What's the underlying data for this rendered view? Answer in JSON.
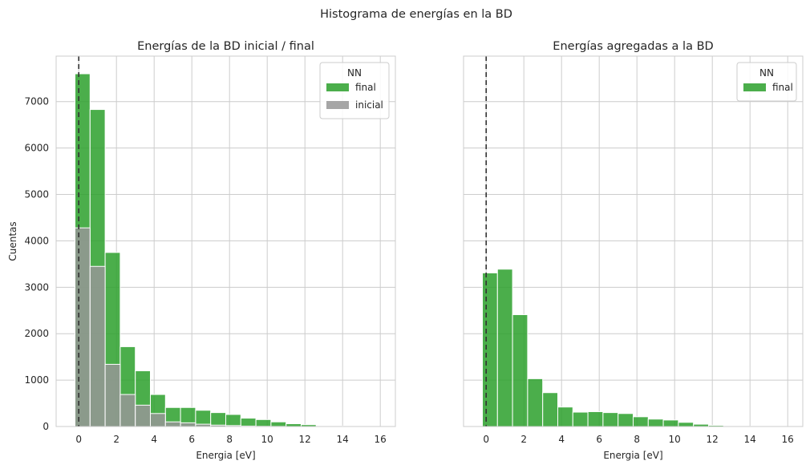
{
  "figure": {
    "suptitle": "Histograma de energías en la BD"
  },
  "colors": {
    "final": "#2ca02c",
    "inicial": "#969696",
    "grid": "#cccccc",
    "refline": "#333333"
  },
  "chart_data": [
    {
      "type": "bar",
      "title": "Energías de la BD inicial / final",
      "xlabel": "Energia [eV]",
      "ylabel": "Cuentas",
      "xlim": [
        -1.2,
        16.8
      ],
      "ylim": [
        0,
        7980
      ],
      "xticks": [
        0,
        2,
        4,
        6,
        8,
        10,
        12,
        14,
        16
      ],
      "yticks": [
        0,
        1000,
        2000,
        3000,
        4000,
        5000,
        6000,
        7000
      ],
      "grid": true,
      "vline_x": 0,
      "bin_edges": [
        -0.2,
        0.6,
        1.4,
        2.2,
        3.0,
        3.8,
        4.6,
        5.4,
        6.2,
        7.0,
        7.8,
        8.6,
        9.4,
        10.2,
        11.0,
        11.8,
        12.6,
        13.4,
        14.2,
        15.0,
        15.8
      ],
      "legend": {
        "title": "NN",
        "position": "top-right",
        "entries": [
          "final",
          "inicial"
        ]
      },
      "series": [
        {
          "name": "final",
          "color": "#2ca02c",
          "values": [
            7600,
            6830,
            3750,
            1720,
            1200,
            690,
            410,
            410,
            350,
            300,
            260,
            180,
            150,
            100,
            60,
            40,
            15,
            10,
            5,
            3
          ]
        },
        {
          "name": "inicial",
          "color": "#969696",
          "values": [
            4280,
            3450,
            1340,
            690,
            460,
            280,
            100,
            80,
            50,
            30,
            20,
            10,
            5,
            3,
            0,
            0,
            0,
            0,
            0,
            0
          ]
        }
      ]
    },
    {
      "type": "bar",
      "title": "Energías agregadas a la BD",
      "xlabel": "Energia [eV]",
      "ylabel": "",
      "xlim": [
        -1.2,
        16.8
      ],
      "ylim": [
        0,
        7980
      ],
      "xticks": [
        0,
        2,
        4,
        6,
        8,
        10,
        12,
        14,
        16
      ],
      "yticks": [],
      "grid": true,
      "vline_x": 0,
      "bin_edges": [
        -0.2,
        0.6,
        1.4,
        2.2,
        3.0,
        3.8,
        4.6,
        5.4,
        6.2,
        7.0,
        7.8,
        8.6,
        9.4,
        10.2,
        11.0,
        11.8,
        12.6,
        13.4,
        14.2,
        15.0,
        15.8
      ],
      "legend": {
        "title": "NN",
        "position": "top-right",
        "entries": [
          "final"
        ]
      },
      "series": [
        {
          "name": "final",
          "color": "#2ca02c",
          "values": [
            3310,
            3390,
            2410,
            1030,
            730,
            420,
            310,
            320,
            300,
            280,
            210,
            160,
            140,
            90,
            50,
            25,
            10,
            5,
            3,
            2
          ]
        }
      ]
    }
  ]
}
